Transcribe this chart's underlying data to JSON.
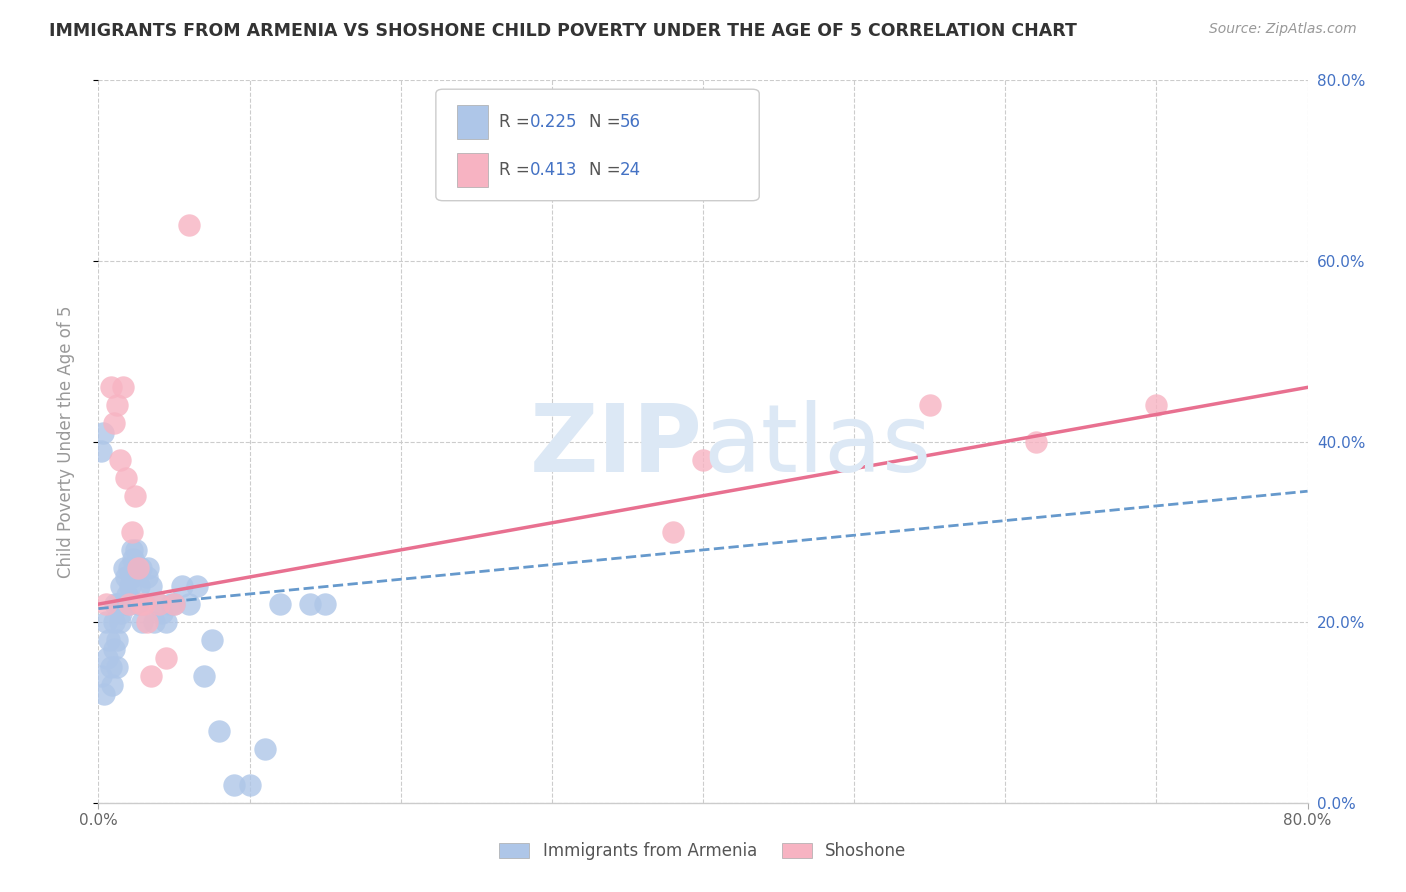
{
  "title": "IMMIGRANTS FROM ARMENIA VS SHOSHONE CHILD POVERTY UNDER THE AGE OF 5 CORRELATION CHART",
  "source": "Source: ZipAtlas.com",
  "ylabel": "Child Poverty Under the Age of 5",
  "xlim": [
    0.0,
    0.8
  ],
  "ylim": [
    0.0,
    0.8
  ],
  "armenia_color": "#aec6e8",
  "shoshone_color": "#f7b3c2",
  "armenia_line_color": "#6699cc",
  "shoshone_line_color": "#e87090",
  "background_color": "#ffffff",
  "grid_color": "#cccccc",
  "right_tick_color": "#4472C4",
  "watermark_color": "#dce8f5",
  "armenia_scatter_x": [
    0.002,
    0.004,
    0.005,
    0.006,
    0.007,
    0.008,
    0.009,
    0.01,
    0.01,
    0.011,
    0.012,
    0.012,
    0.013,
    0.014,
    0.015,
    0.015,
    0.016,
    0.017,
    0.018,
    0.019,
    0.02,
    0.02,
    0.021,
    0.022,
    0.022,
    0.023,
    0.024,
    0.025,
    0.026,
    0.027,
    0.028,
    0.029,
    0.03,
    0.032,
    0.033,
    0.035,
    0.037,
    0.04,
    0.042,
    0.045,
    0.048,
    0.05,
    0.055,
    0.06,
    0.065,
    0.07,
    0.075,
    0.08,
    0.09,
    0.1,
    0.11,
    0.12,
    0.14,
    0.15,
    0.002,
    0.003
  ],
  "armenia_scatter_y": [
    0.14,
    0.12,
    0.2,
    0.16,
    0.18,
    0.15,
    0.13,
    0.2,
    0.17,
    0.22,
    0.18,
    0.15,
    0.22,
    0.2,
    0.24,
    0.21,
    0.22,
    0.26,
    0.25,
    0.23,
    0.26,
    0.22,
    0.24,
    0.28,
    0.25,
    0.27,
    0.26,
    0.28,
    0.22,
    0.24,
    0.26,
    0.2,
    0.22,
    0.25,
    0.26,
    0.24,
    0.2,
    0.22,
    0.21,
    0.2,
    0.22,
    0.22,
    0.24,
    0.22,
    0.24,
    0.14,
    0.18,
    0.08,
    0.02,
    0.02,
    0.06,
    0.22,
    0.22,
    0.22,
    0.39,
    0.41
  ],
  "shoshone_scatter_x": [
    0.005,
    0.008,
    0.01,
    0.012,
    0.014,
    0.016,
    0.018,
    0.02,
    0.022,
    0.024,
    0.026,
    0.028,
    0.03,
    0.032,
    0.035,
    0.04,
    0.045,
    0.05,
    0.06,
    0.38,
    0.62,
    0.7,
    0.55,
    0.4
  ],
  "shoshone_scatter_y": [
    0.22,
    0.46,
    0.42,
    0.44,
    0.38,
    0.46,
    0.36,
    0.22,
    0.3,
    0.34,
    0.26,
    0.22,
    0.22,
    0.2,
    0.14,
    0.22,
    0.16,
    0.22,
    0.64,
    0.3,
    0.4,
    0.44,
    0.44,
    0.38
  ],
  "armenia_trend_x0": 0.0,
  "armenia_trend_x1": 0.8,
  "armenia_trend_y0": 0.215,
  "armenia_trend_y1": 0.345,
  "shoshone_trend_x0": 0.0,
  "shoshone_trend_x1": 0.8,
  "shoshone_trend_y0": 0.22,
  "shoshone_trend_y1": 0.46,
  "legend_r1_val": "0.225",
  "legend_r2_val": "0.413",
  "legend_n1_val": "56",
  "legend_n2_val": "24"
}
